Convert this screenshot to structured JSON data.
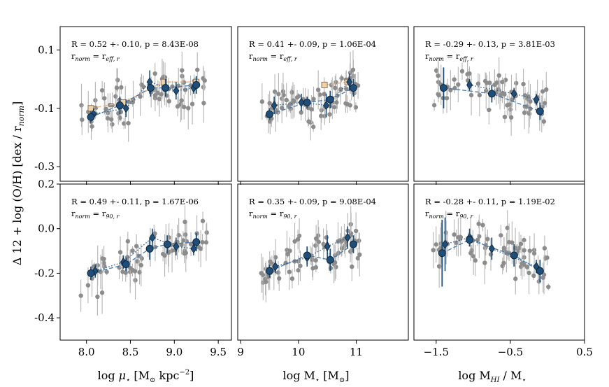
{
  "chart_data": {
    "type": "scatter",
    "ylabel_parts": {
      "main": "Δ 12 + log (O/H) [dex / r",
      "sub": "norm",
      "end": "]"
    },
    "xlabels": [
      {
        "pre": "log ",
        "mu": "μ",
        "star": "⋆",
        "mid": " [M",
        "sun": "⊙",
        "post": " kpc",
        "exp": "−2",
        "close": "]"
      },
      {
        "pre": "log M",
        "star": "⋆",
        "mid": " [M",
        "sun": "⊙",
        "close": "]"
      },
      {
        "pre": "log M",
        "sub": "HI",
        "mid": " / M",
        "star": "⋆"
      }
    ],
    "columns": [
      {
        "xlim": [
          7.7,
          9.65
        ],
        "xticks": [
          8.0,
          8.5,
          9.0,
          9.5
        ],
        "xtick_labels": [
          "8.0",
          "8.5",
          "9.0",
          "9.5"
        ]
      },
      {
        "xlim": [
          8.95,
          11.9
        ],
        "xticks": [
          9,
          10,
          11
        ],
        "xtick_labels": [
          "9",
          "10",
          "11"
        ]
      },
      {
        "xlim": [
          -1.8,
          0.5
        ],
        "xticks": [
          -1.5,
          -0.5,
          0.5
        ],
        "xtick_labels": [
          "−1.5",
          "−0.5",
          "0.5"
        ]
      }
    ],
    "rows": [
      {
        "ylim": [
          -0.35,
          0.18
        ],
        "yticks": [
          0.1,
          -0.1,
          -0.3
        ],
        "ytick_labels": [
          "0.1",
          "-0.1",
          "-0.3"
        ],
        "rnorm": "eff, r"
      },
      {
        "ylim": [
          -0.5,
          0.2
        ],
        "yticks": [
          0.2,
          0.0,
          -0.2,
          -0.4
        ],
        "ytick_labels": [
          "0.2",
          "0.0",
          "-0.2",
          "-0.4"
        ],
        "rnorm": "90, r"
      }
    ],
    "panels": [
      {
        "row": 0,
        "col": 0,
        "stat_text": "R = 0.52 +- 0.10, p = 8.43E-08",
        "rnorm_label": "r",
        "rnorm_sub": "norm",
        "rnorm_eq": " = r",
        "rnorm_eq_sub": "eff, r",
        "circles": [
          [
            8.05,
            -0.13,
            0.02
          ],
          [
            8.38,
            -0.09,
            0.03
          ],
          [
            8.73,
            -0.03,
            0.03
          ],
          [
            8.9,
            -0.03,
            0.03
          ],
          [
            9.25,
            -0.02,
            0.03
          ]
        ],
        "diamonds": [
          [
            8.08,
            -0.12,
            0.02
          ],
          [
            8.45,
            -0.1,
            0.03
          ],
          [
            8.72,
            -0.01,
            0.04
          ],
          [
            9.02,
            -0.04,
            0.03
          ],
          [
            9.22,
            -0.03,
            0.02
          ]
        ],
        "squares": [
          [
            8.05,
            -0.1
          ],
          [
            8.42,
            -0.08
          ],
          [
            8.88,
            -0.01
          ],
          [
            9.25,
            -0.01
          ]
        ]
      },
      {
        "row": 0,
        "col": 1,
        "stat_text": "R = 0.41 +- 0.09, p = 1.06E-04",
        "rnorm_label": "r",
        "rnorm_sub": "norm",
        "rnorm_eq": " = r",
        "rnorm_eq_sub": "eff, r",
        "circles": [
          [
            9.5,
            -0.12,
            0.02
          ],
          [
            10.15,
            -0.08,
            0.02
          ],
          [
            10.55,
            -0.07,
            0.03
          ],
          [
            10.95,
            -0.03,
            0.03
          ]
        ],
        "diamonds": [
          [
            9.58,
            -0.09,
            0.03
          ],
          [
            10.05,
            -0.08,
            0.03
          ],
          [
            10.48,
            -0.09,
            0.04
          ],
          [
            10.88,
            -0.01,
            0.03
          ]
        ],
        "squares": [
          [
            10.45,
            -0.02
          ],
          [
            10.85,
            -0.01
          ]
        ]
      },
      {
        "row": 0,
        "col": 2,
        "stat_text": "R = -0.29 +- 0.13, p = 3.81E-03",
        "rnorm_label": "r",
        "rnorm_sub": "norm",
        "rnorm_eq": " = r",
        "rnorm_eq_sub": "eff, r",
        "circles": [
          [
            -1.4,
            -0.03,
            0.07
          ],
          [
            -0.75,
            -0.05,
            0.03
          ],
          [
            -0.1,
            -0.11,
            0.03
          ]
        ],
        "diamonds": [
          [
            -1.05,
            -0.02,
            0.02
          ],
          [
            -0.45,
            -0.05,
            0.02
          ],
          [
            -0.15,
            -0.07,
            0.02
          ]
        ],
        "squares": []
      },
      {
        "row": 1,
        "col": 0,
        "stat_text": "R = 0.49 +- 0.11, p = 1.67E-06",
        "rnorm_label": "r",
        "rnorm_sub": "norm",
        "rnorm_eq": " = r",
        "rnorm_eq_sub": "90, r",
        "circles": [
          [
            8.05,
            -0.2,
            0.03
          ],
          [
            8.45,
            -0.16,
            0.03
          ],
          [
            8.72,
            -0.09,
            0.05
          ],
          [
            8.92,
            -0.07,
            0.04
          ],
          [
            9.25,
            -0.06,
            0.04
          ]
        ],
        "diamonds": [
          [
            8.1,
            -0.19,
            0.03
          ],
          [
            8.42,
            -0.15,
            0.03
          ],
          [
            8.75,
            -0.04,
            0.04
          ],
          [
            9.02,
            -0.08,
            0.04
          ],
          [
            9.22,
            -0.09,
            0.03
          ]
        ],
        "squares": []
      },
      {
        "row": 1,
        "col": 1,
        "stat_text": "R = 0.35 +- 0.09, p = 9.08E-04",
        "rnorm_label": "r",
        "rnorm_sub": "norm",
        "rnorm_eq": " = r",
        "rnorm_eq_sub": "90, r",
        "circles": [
          [
            9.5,
            -0.19,
            0.03
          ],
          [
            10.15,
            -0.12,
            0.04
          ],
          [
            10.55,
            -0.14,
            0.05
          ],
          [
            10.95,
            -0.07,
            0.04
          ]
        ],
        "diamonds": [
          [
            9.6,
            -0.17,
            0.03
          ],
          [
            10.15,
            -0.13,
            0.04
          ],
          [
            10.5,
            -0.08,
            0.05
          ],
          [
            10.85,
            -0.04,
            0.05
          ]
        ],
        "squares": []
      },
      {
        "row": 1,
        "col": 2,
        "stat_text": "R = -0.28 +- 0.11, p = 1.19E-02",
        "rnorm_label": "r",
        "rnorm_sub": "norm",
        "rnorm_eq": " = r",
        "rnorm_eq_sub": "90, r",
        "circles": [
          [
            -1.42,
            -0.11,
            0.15
          ],
          [
            -1.05,
            -0.05,
            0.03
          ],
          [
            -0.45,
            -0.12,
            0.05
          ],
          [
            -0.1,
            -0.19,
            0.05
          ]
        ],
        "diamonds": [
          [
            -1.38,
            -0.07,
            0.12
          ],
          [
            -1.05,
            -0.04,
            0.04
          ],
          [
            -0.75,
            -0.09,
            0.05
          ],
          [
            -0.15,
            -0.17,
            0.03
          ]
        ],
        "squares": []
      }
    ],
    "series_colors": {
      "gray": "#8c8c8c",
      "navy": "#1f4e79",
      "navy_edge": "#0b2138",
      "square_face": "#f2d3a7",
      "square_edge": "#8a7060",
      "dashed": "#4a7ba8",
      "dotted": "#2c5d8a",
      "tan": "#e8b27a"
    }
  }
}
